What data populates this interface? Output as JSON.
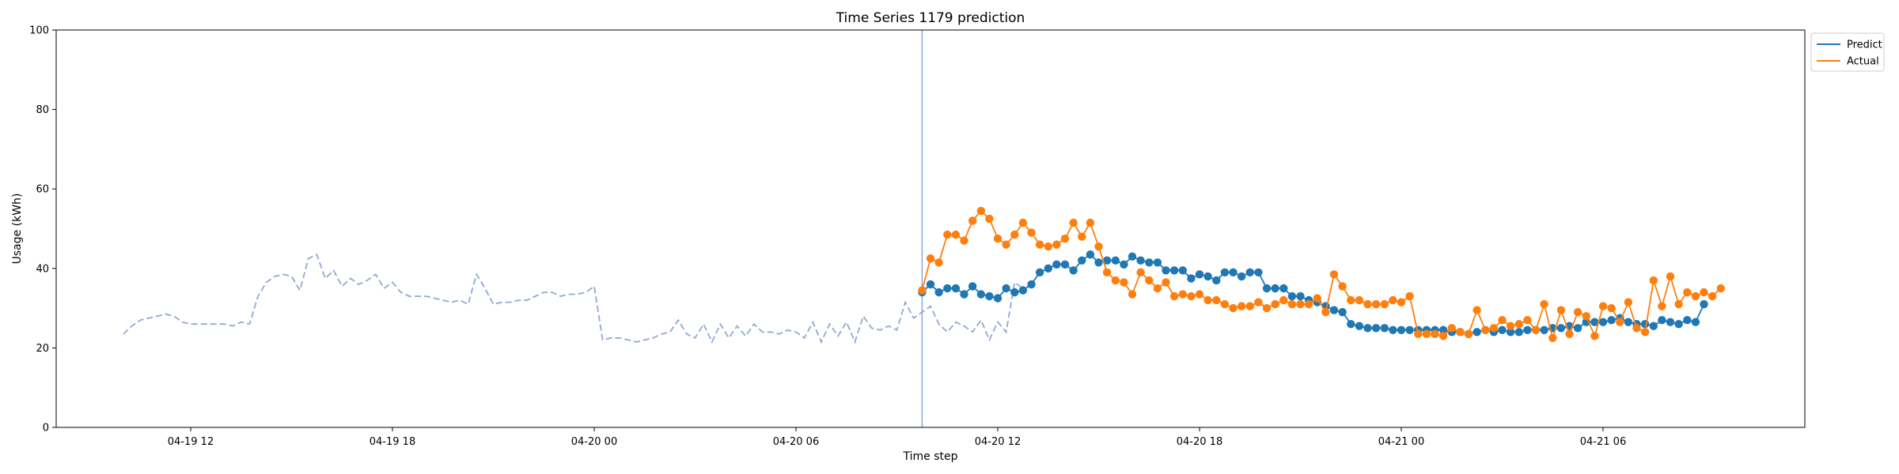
{
  "chart_data": {
    "type": "line",
    "title": "Time Series 1179 prediction",
    "xlabel": "Time step",
    "ylabel": "Usage (kWh)",
    "ylim": [
      0,
      100
    ],
    "yticks": [
      0,
      20,
      40,
      60,
      80,
      100
    ],
    "xlim": [
      "2026-04-19T08:00",
      "2026-04-21T12:00"
    ],
    "xticks": [
      {
        "label": "04-19 12",
        "time": "2026-04-19T12:00"
      },
      {
        "label": "04-19 18",
        "time": "2026-04-19T18:00"
      },
      {
        "label": "04-20 00",
        "time": "2026-04-20T00:00"
      },
      {
        "label": "04-20 06",
        "time": "2026-04-20T06:00"
      },
      {
        "label": "04-20 12",
        "time": "2026-04-20T12:00"
      },
      {
        "label": "04-20 18",
        "time": "2026-04-20T18:00"
      },
      {
        "label": "04-21 00",
        "time": "2026-04-21T00:00"
      },
      {
        "label": "04-21 06",
        "time": "2026-04-21T06:00"
      }
    ],
    "grid": false,
    "legend_position": "outside top-right",
    "forecast_start": "2026-04-20T09:45",
    "history": {
      "start": "2026-04-19T10:00",
      "step_minutes": 15,
      "color": "#92a9cf",
      "style": "dashed",
      "values": [
        23.5,
        25.5,
        27,
        27.5,
        28,
        28.5,
        28,
        26.5,
        26,
        26,
        26,
        26,
        26,
        25.5,
        26.5,
        26,
        33,
        36.5,
        38,
        38.5,
        38,
        34.5,
        42.5,
        43.5,
        37.5,
        39.5,
        35.5,
        37.5,
        36,
        37,
        38.5,
        35,
        36.5,
        34,
        33,
        33,
        33,
        32.5,
        32,
        31.5,
        32,
        31,
        38.5,
        35,
        31,
        31.5,
        31.5,
        32,
        32,
        33,
        34,
        34,
        33,
        33.5,
        33.5,
        34,
        35.5,
        22,
        22.5,
        22.5,
        22,
        21.5,
        22,
        22.5,
        23.5,
        24,
        27,
        23.5,
        22.5,
        26,
        21.5,
        26,
        22.5,
        25.5,
        23,
        26,
        24,
        24,
        23.5,
        24.5,
        24,
        22.5,
        26.5,
        21.5,
        26,
        23,
        26.5,
        21.5,
        28,
        25,
        24.5,
        25.5,
        24.5,
        31.5,
        27.5,
        29,
        30.5,
        26,
        24,
        26.5,
        25.5,
        24,
        27,
        22,
        26.5,
        24,
        36.5,
        35
      ]
    },
    "series": [
      {
        "name": "Predict",
        "color": "#1f77b4",
        "start": "2026-04-20T09:45",
        "step_minutes": 15,
        "values": [
          34,
          36,
          34,
          35,
          35,
          33.5,
          35.5,
          33.5,
          33,
          32.5,
          35,
          34,
          34.5,
          36,
          39,
          40,
          41,
          41,
          39.5,
          42,
          43.5,
          41.5,
          42,
          42,
          41,
          43,
          42,
          41.5,
          41.5,
          39.5,
          39.5,
          39.5,
          37.5,
          38.5,
          38,
          37,
          39,
          39,
          38,
          39,
          39,
          35,
          35,
          35,
          33,
          33,
          32,
          31.5,
          30.5,
          29.5,
          29,
          26,
          25.5,
          25,
          25,
          25,
          24.5,
          24.5,
          24.5,
          24.5,
          24.5,
          24.5,
          24.5,
          24,
          24,
          23.5,
          24,
          24.5,
          24,
          24.5,
          24,
          24,
          24.5,
          24.5,
          24.5,
          25,
          25,
          25.5,
          25,
          26.5,
          26.5,
          26.5,
          27,
          27.5,
          26.5,
          26,
          26,
          25.5,
          27,
          26.5,
          26,
          27,
          26.5,
          31
        ]
      },
      {
        "name": "Actual",
        "color": "#ff7f0e",
        "start": "2026-04-20T09:45",
        "step_minutes": 15,
        "values": [
          34.5,
          42.5,
          41.5,
          48.5,
          48.5,
          47,
          52,
          54.5,
          52.5,
          47.5,
          46,
          48.5,
          51.5,
          49,
          46,
          45.5,
          46,
          47.5,
          51.5,
          48,
          51.5,
          45.5,
          39,
          37,
          36.5,
          33.5,
          39,
          37,
          35,
          36.5,
          33,
          33.5,
          33,
          33.5,
          32,
          32,
          31,
          30,
          30.5,
          30.5,
          31.5,
          30,
          31,
          32,
          31,
          31,
          31,
          32.5,
          29,
          38.5,
          35.5,
          32,
          32,
          31,
          31,
          31,
          32,
          31.5,
          33,
          23.5,
          23.5,
          23.5,
          23,
          25,
          24,
          23.5,
          29.5,
          24.5,
          25,
          27,
          25.5,
          26,
          27,
          24.5,
          31,
          22.5,
          29.5,
          23.5,
          29,
          28,
          23,
          30.5,
          30,
          26.5,
          31.5,
          25,
          24,
          37,
          30.5,
          38,
          31,
          34,
          33,
          34,
          33,
          35
        ]
      }
    ]
  }
}
